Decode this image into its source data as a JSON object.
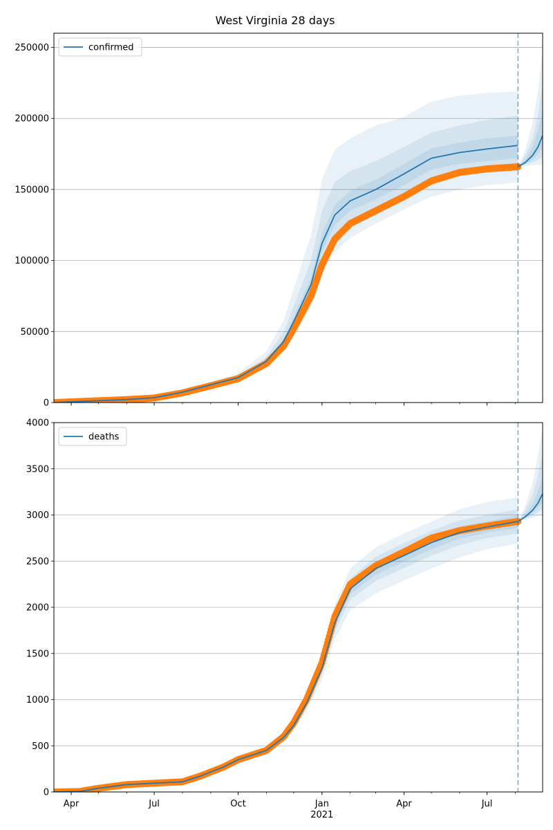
{
  "figure": {
    "title": "West Virginia 28 days"
  },
  "colors": {
    "model": "#1f77b4",
    "observed": "#ff7f0e",
    "band": "#1f77b4",
    "grid": "#b0b0b0"
  },
  "x_axis": {
    "tick_labels": [
      "Apr",
      "Jul",
      "Oct",
      "Jan",
      "Apr",
      "Jul"
    ],
    "tick_dates": [
      "2020-04-01",
      "2020-07-01",
      "2020-10-01",
      "2021-01-01",
      "2021-04-01",
      "2021-07-01"
    ],
    "year_label": "2021",
    "range": [
      "2020-03-13",
      "2021-08-31"
    ],
    "minor_ticks": "monthly"
  },
  "chart_data": [
    {
      "type": "line",
      "legend": {
        "label": "confirmed",
        "placement": "top-left"
      },
      "ylim": [
        0,
        260000
      ],
      "yticks": [
        0,
        50000,
        100000,
        150000,
        200000,
        250000
      ],
      "ytick_labels": [
        "0",
        "50000",
        "100000",
        "150000",
        "200000",
        "250000"
      ],
      "grid": "horizontal",
      "forecast_start": "2021-08-04",
      "observed": {
        "x": [
          "2020-03-13",
          "2020-05-01",
          "2020-06-01",
          "2020-07-01",
          "2020-08-01",
          "2020-09-01",
          "2020-10-01",
          "2020-11-01",
          "2020-11-20",
          "2020-12-01",
          "2020-12-20",
          "2021-01-01",
          "2021-01-15",
          "2021-02-01",
          "2021-03-01",
          "2021-04-01",
          "2021-05-01",
          "2021-06-01",
          "2021-07-01",
          "2021-08-04"
        ],
        "y": [
          0,
          1300,
          2100,
          3200,
          6800,
          11800,
          16800,
          27500,
          40000,
          52000,
          75000,
          97000,
          115000,
          126000,
          135000,
          145000,
          156000,
          162000,
          164500,
          166000
        ]
      },
      "model": {
        "x": [
          "2020-03-13",
          "2020-05-01",
          "2020-06-01",
          "2020-07-01",
          "2020-08-01",
          "2020-09-01",
          "2020-10-01",
          "2020-11-01",
          "2020-11-20",
          "2020-12-01",
          "2020-12-20",
          "2021-01-01",
          "2021-01-15",
          "2021-02-01",
          "2021-03-01",
          "2021-04-01",
          "2021-05-01",
          "2021-06-01",
          "2021-07-01",
          "2021-08-04"
        ],
        "y": [
          0,
          1300,
          2100,
          3400,
          7300,
          12500,
          17500,
          29000,
          43000,
          57000,
          83000,
          112000,
          132000,
          142000,
          150000,
          161000,
          172000,
          176000,
          178500,
          181000
        ]
      },
      "bands": [
        {
          "level": "outer",
          "lower": [
            0,
            1250,
            2000,
            3000,
            6400,
            11000,
            15500,
            26000,
            37000,
            47000,
            68000,
            90000,
            106000,
            116000,
            126000,
            136000,
            145000,
            150000,
            153000,
            155000
          ],
          "upper": [
            0,
            1400,
            2300,
            3900,
            8400,
            14500,
            20500,
            36000,
            58000,
            80000,
            118000,
            157000,
            178000,
            186000,
            195000,
            201000,
            212000,
            216000,
            218000,
            219000
          ]
        },
        {
          "level": "middle",
          "lower": [
            0,
            1270,
            2050,
            3200,
            6900,
            11800,
            16500,
            27500,
            40000,
            52000,
            75000,
            100000,
            118000,
            128000,
            136000,
            146000,
            156000,
            160000,
            162000,
            163000
          ],
          "upper": [
            0,
            1350,
            2200,
            3700,
            7800,
            13500,
            19000,
            32000,
            50000,
            68000,
            100000,
            135000,
            155000,
            163000,
            170000,
            180000,
            190000,
            195000,
            199000,
            202000
          ]
        },
        {
          "level": "inner",
          "lower": [
            0,
            1290,
            2080,
            3300,
            7100,
            12200,
            17000,
            28200,
            41500,
            54500,
            79000,
            106000,
            125000,
            135000,
            143000,
            153000,
            164000,
            168000,
            170000,
            172000
          ],
          "upper": [
            0,
            1320,
            2150,
            3550,
            7500,
            12900,
            18100,
            30000,
            45000,
            60500,
            88000,
            119000,
            139000,
            149000,
            157000,
            168000,
            179000,
            183000,
            186000,
            188000
          ]
        }
      ],
      "forecast": {
        "x": [
          "2021-08-04",
          "2021-08-12",
          "2021-08-20",
          "2021-08-26",
          "2021-08-31"
        ],
        "y": [
          166000,
          169000,
          174000,
          180000,
          188000
        ],
        "bands": [
          {
            "level": "outer",
            "lower": [
              166000,
              166500,
              167000,
              167500,
              168000
            ],
            "upper": [
              166000,
              178000,
              197000,
              220000,
              248000
            ]
          },
          {
            "level": "middle",
            "lower": [
              166000,
              167500,
              169000,
              171000,
              173000
            ],
            "upper": [
              166000,
              174000,
              186000,
              203000,
              225000
            ]
          },
          {
            "level": "inner",
            "lower": [
              166000,
              168000,
              171000,
              175000,
              180000
            ],
            "upper": [
              166000,
              171000,
              180000,
              192000,
              206000
            ]
          }
        ]
      }
    },
    {
      "type": "line",
      "legend": {
        "label": "deaths",
        "placement": "top-left"
      },
      "ylim": [
        0,
        4000
      ],
      "yticks": [
        0,
        500,
        1000,
        1500,
        2000,
        2500,
        3000,
        3500,
        4000
      ],
      "ytick_labels": [
        "0",
        "500",
        "1000",
        "1500",
        "2000",
        "2500",
        "3000",
        "3500",
        "4000"
      ],
      "grid": "horizontal",
      "forecast_start": "2021-08-04",
      "observed": {
        "x": [
          "2020-03-13",
          "2020-04-10",
          "2020-05-01",
          "2020-06-01",
          "2020-07-01",
          "2020-08-01",
          "2020-08-20",
          "2020-09-15",
          "2020-10-01",
          "2020-11-01",
          "2020-11-20",
          "2020-12-01",
          "2020-12-15",
          "2021-01-01",
          "2021-01-15",
          "2021-02-01",
          "2021-03-01",
          "2021-04-01",
          "2021-05-01",
          "2021-06-01",
          "2021-07-01",
          "2021-08-04"
        ],
        "y": [
          0,
          5,
          40,
          80,
          95,
          110,
          170,
          270,
          350,
          450,
          600,
          750,
          1000,
          1400,
          1900,
          2250,
          2450,
          2600,
          2750,
          2830,
          2880,
          2930
        ]
      },
      "model": {
        "x": [
          "2020-03-13",
          "2020-04-10",
          "2020-05-01",
          "2020-06-01",
          "2020-07-01",
          "2020-08-01",
          "2020-08-20",
          "2020-09-15",
          "2020-10-01",
          "2020-11-01",
          "2020-11-20",
          "2020-12-01",
          "2020-12-15",
          "2021-01-01",
          "2021-01-15",
          "2021-02-01",
          "2021-03-01",
          "2021-04-01",
          "2021-05-01",
          "2021-06-01",
          "2021-07-01",
          "2021-08-04"
        ],
        "y": [
          0,
          5,
          40,
          80,
          95,
          110,
          170,
          270,
          350,
          450,
          590,
          720,
          960,
          1340,
          1830,
          2200,
          2420,
          2560,
          2700,
          2810,
          2870,
          2930
        ]
      },
      "bands": [
        {
          "level": "outer",
          "lower": [
            0,
            5,
            38,
            76,
            90,
            104,
            160,
            255,
            330,
            425,
            555,
            670,
            880,
            1210,
            1650,
            1970,
            2150,
            2290,
            2420,
            2540,
            2630,
            2690
          ],
          "upper": [
            0,
            6,
            42,
            84,
            100,
            116,
            180,
            285,
            370,
            475,
            625,
            780,
            1050,
            1480,
            2020,
            2420,
            2650,
            2800,
            2930,
            3060,
            3140,
            3190
          ]
        },
        {
          "level": "middle",
          "lower": [
            0,
            5,
            39,
            78,
            92,
            107,
            165,
            262,
            340,
            437,
            572,
            695,
            920,
            1275,
            1740,
            2085,
            2285,
            2425,
            2560,
            2675,
            2750,
            2800
          ],
          "upper": [
            0,
            6,
            41,
            82,
            98,
            113,
            175,
            278,
            360,
            463,
            608,
            750,
            1005,
            1410,
            1920,
            2310,
            2550,
            2695,
            2830,
            2940,
            3000,
            3060
          ]
        },
        {
          "level": "inner",
          "lower": [
            0,
            5,
            40,
            79,
            94,
            109,
            168,
            266,
            345,
            444,
            581,
            708,
            940,
            1308,
            1785,
            2143,
            2353,
            2493,
            2630,
            2743,
            2810,
            2860
          ],
          "upper": [
            0,
            5,
            40,
            81,
            96,
            111,
            172,
            274,
            355,
            456,
            599,
            733,
            980,
            1372,
            1875,
            2257,
            2487,
            2627,
            2770,
            2877,
            2930,
            3000
          ]
        }
      ],
      "forecast": {
        "x": [
          "2021-08-04",
          "2021-08-12",
          "2021-08-20",
          "2021-08-26",
          "2021-08-31"
        ],
        "y": [
          2930,
          2980,
          3050,
          3130,
          3230
        ],
        "bands": [
          {
            "level": "outer",
            "lower": [
              2930,
              2950,
              2970,
              2990,
              3000
            ],
            "upper": [
              2930,
              3100,
              3350,
              3650,
              3950
            ]
          },
          {
            "level": "middle",
            "lower": [
              2930,
              2960,
              3000,
              3030,
              3060
            ],
            "upper": [
              2930,
              3050,
              3220,
              3430,
              3680
            ]
          },
          {
            "level": "inner",
            "lower": [
              2930,
              2970,
              3020,
              3080,
              3130
            ],
            "upper": [
              2930,
              3010,
              3120,
              3260,
              3420
            ]
          }
        ]
      }
    }
  ]
}
